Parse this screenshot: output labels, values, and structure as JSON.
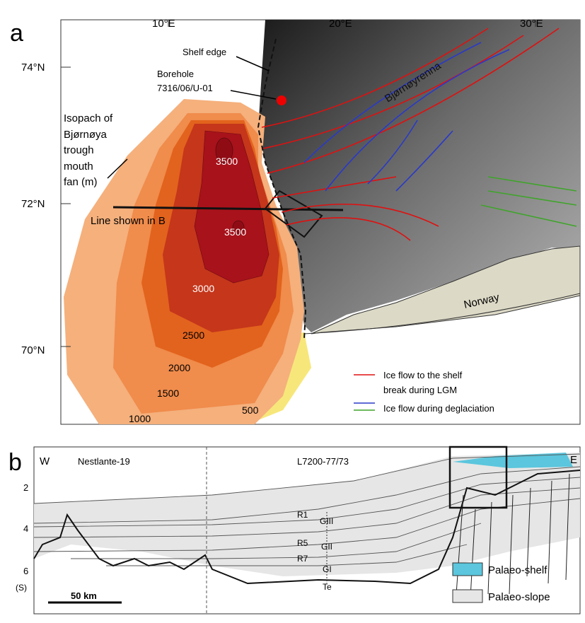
{
  "panel_a": {
    "label": "a",
    "longitudes": [
      "10°E",
      "20°E",
      "30°E"
    ],
    "latitudes": [
      "74°N",
      "72°N",
      "70°N"
    ],
    "annotations": {
      "shelf_edge": "Shelf edge",
      "borehole": [
        "Borehole",
        "7316/06/U-01"
      ],
      "isopach": [
        "Isopach of",
        "Bjørnøya",
        "trough",
        "mouth",
        "fan (m)"
      ],
      "line": "Line shown in B",
      "trough_name": "Bjørnøyrenna",
      "land": "Norway"
    },
    "contours": [
      "3500",
      "3500",
      "3000",
      "2500",
      "2000",
      "1500",
      "1000",
      "500"
    ],
    "legend": {
      "lgm": [
        "Ice flow to the shelf",
        "break during LGM"
      ],
      "deglaciation": "Ice flow during deglaciation"
    }
  },
  "panel_b": {
    "label": "b",
    "west": "W",
    "east": "E",
    "profiles": [
      "Nestlante-19",
      "L7200-77/73"
    ],
    "depths": [
      "2",
      "4",
      "6",
      "(S)"
    ],
    "horizons": [
      "R1",
      "R5",
      "R7"
    ],
    "units": [
      "GIII",
      "GII",
      "GI",
      "Te"
    ],
    "scale": "50 km",
    "legend": [
      "Palaeo-shelf",
      "Palaeo-slope"
    ]
  }
}
